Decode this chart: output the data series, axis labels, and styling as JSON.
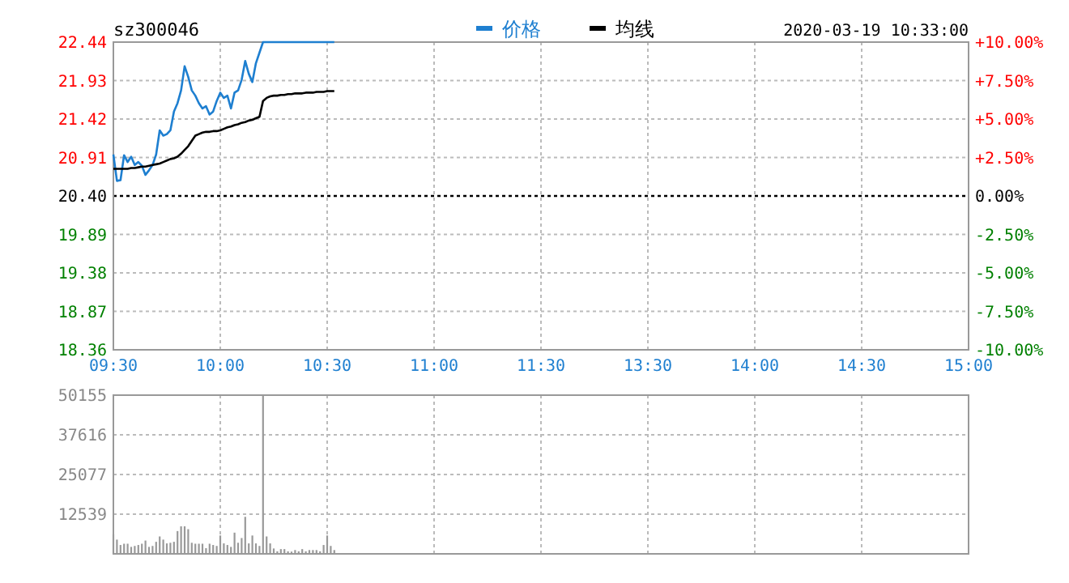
{
  "chart_data": [
    {
      "type": "line",
      "title": "sz300046",
      "subtitle": "2020-03-19 10:33:00",
      "legend": "top",
      "grid": true,
      "categories": [
        "09:30",
        null,
        null,
        null,
        null,
        null,
        null,
        null,
        null,
        null,
        null,
        null,
        null,
        null,
        null,
        null,
        null,
        null,
        null,
        null,
        null,
        null,
        null,
        null,
        null,
        null,
        null,
        null,
        null,
        null,
        "10:00",
        null,
        null,
        null,
        null,
        null,
        null,
        null,
        null,
        null,
        null,
        null,
        null,
        null,
        null,
        null,
        null,
        null,
        null,
        null,
        null,
        null,
        null,
        null,
        null,
        null,
        null,
        null,
        null,
        null,
        "10:30",
        null,
        null,
        null,
        null,
        null,
        null,
        null,
        null,
        null,
        null,
        null,
        null,
        null,
        null,
        null,
        null,
        null,
        null,
        null,
        null,
        null,
        null,
        null,
        null,
        null,
        null,
        null,
        null,
        null,
        "11:00",
        null,
        null,
        null,
        null,
        null,
        null,
        null,
        null,
        null,
        null,
        null,
        null,
        null,
        null,
        null,
        null,
        null,
        null,
        null,
        null,
        null,
        null,
        null,
        null,
        null,
        null,
        null,
        null,
        null,
        "11:30",
        null,
        null,
        null,
        null,
        null,
        null,
        null,
        null,
        null,
        null,
        null,
        null,
        null,
        null,
        null,
        null,
        null,
        null,
        null,
        null,
        null,
        null,
        null,
        null,
        null,
        null,
        null,
        null,
        null,
        "13:30",
        null,
        null,
        null,
        null,
        null,
        null,
        null,
        null,
        null,
        null,
        null,
        null,
        null,
        null,
        null,
        null,
        null,
        null,
        null,
        null,
        null,
        null,
        null,
        null,
        null,
        null,
        null,
        null,
        null,
        "14:00",
        null,
        null,
        null,
        null,
        null,
        null,
        null,
        null,
        null,
        null,
        null,
        null,
        null,
        null,
        null,
        null,
        null,
        null,
        null,
        null,
        null,
        null,
        null,
        null,
        null,
        null,
        null,
        null,
        null,
        "14:30",
        null,
        null,
        null,
        null,
        null,
        null,
        null,
        null,
        null,
        null,
        null,
        null,
        null,
        null,
        null,
        null,
        null,
        null,
        null,
        null,
        null,
        null,
        null,
        null,
        null,
        null,
        null,
        null,
        null,
        "15:00"
      ],
      "ylim": [
        18.36,
        22.44
      ],
      "yticks": [
        22.44,
        21.93,
        21.42,
        20.91,
        {
          "value": 20.4,
          "label": "20.40"
        },
        19.89,
        19.38,
        18.87,
        18.36
      ],
      "y2lim": [
        -10,
        10
      ],
      "y2ticks": [
        {
          "value": 10,
          "label": "+10.00%"
        },
        {
          "value": 7.5,
          "label": "+7.50%"
        },
        {
          "value": 5,
          "label": "+5.00%"
        },
        {
          "value": 2.5,
          "label": "+2.50%"
        },
        {
          "value": 0,
          "label": "0.00%"
        },
        {
          "value": -2.5,
          "label": "-2.50%"
        },
        {
          "value": -5,
          "label": "-5.00%"
        },
        {
          "value": -7.5,
          "label": "-7.50%"
        },
        {
          "value": -10,
          "label": "-10.00%"
        }
      ],
      "ref_lines": [
        {
          "axis": "y",
          "value": 20.4,
          "color": "#000000",
          "line_style": "dotted"
        }
      ],
      "series": [
        {
          "name": "价格",
          "color": "#1e7fd0",
          "values": [
            20.95,
            20.6,
            20.61,
            20.94,
            20.85,
            20.92,
            20.81,
            20.85,
            20.8,
            20.68,
            20.74,
            20.81,
            20.95,
            21.27,
            21.2,
            21.22,
            21.27,
            21.52,
            21.63,
            21.8,
            22.12,
            21.98,
            21.8,
            21.73,
            21.63,
            21.56,
            21.59,
            21.48,
            21.52,
            21.66,
            21.77,
            21.7,
            21.73,
            21.56,
            21.77,
            21.8,
            21.94,
            22.19,
            22.02,
            21.91,
            22.16,
            22.3,
            22.44,
            22.44,
            22.44,
            22.44,
            22.44,
            22.44,
            22.44,
            22.44,
            22.44,
            22.44,
            22.44,
            22.44,
            22.44,
            22.44,
            22.44,
            22.44,
            22.44,
            22.44,
            22.44,
            22.44,
            22.44,
            null,
            null,
            null,
            null,
            null,
            null,
            null,
            null,
            null,
            null,
            null,
            null,
            null,
            null,
            null,
            null,
            null,
            null,
            null,
            null,
            null,
            null,
            null,
            null,
            null,
            null,
            null,
            null,
            null,
            null,
            null,
            null,
            null,
            null,
            null,
            null,
            null,
            null,
            null,
            null,
            null,
            null,
            null,
            null,
            null,
            null,
            null,
            null,
            null,
            null,
            null,
            null,
            null,
            null,
            null,
            null,
            null,
            null,
            null,
            null,
            null,
            null,
            null,
            null,
            null,
            null,
            null,
            null,
            null,
            null,
            null,
            null,
            null,
            null,
            null,
            null,
            null,
            null,
            null,
            null,
            null,
            null,
            null,
            null,
            null,
            null,
            null,
            null,
            null,
            null,
            null,
            null,
            null,
            null,
            null,
            null,
            null,
            null,
            null,
            null,
            null,
            null,
            null,
            null,
            null,
            null,
            null,
            null,
            null,
            null,
            null,
            null,
            null,
            null,
            null,
            null,
            null,
            null,
            null,
            null,
            null,
            null,
            null,
            null,
            null,
            null,
            null,
            null,
            null,
            null,
            null,
            null,
            null,
            null,
            null,
            null,
            null,
            null,
            null,
            null,
            null,
            null,
            null,
            null,
            null,
            null,
            null,
            null,
            null,
            null,
            null,
            null,
            null,
            null,
            null,
            null,
            null,
            null,
            null,
            null,
            null,
            null,
            null,
            null,
            null,
            null,
            null,
            null,
            null,
            null,
            null,
            null,
            null,
            null,
            null,
            null,
            null,
            null
          ]
        },
        {
          "name": "均线",
          "color": "#000000",
          "values": [
            20.76,
            20.76,
            20.76,
            20.76,
            20.76,
            20.77,
            20.77,
            20.78,
            20.79,
            20.79,
            20.8,
            20.81,
            20.82,
            20.83,
            20.85,
            20.87,
            20.89,
            20.9,
            20.92,
            20.96,
            21.01,
            21.06,
            21.13,
            21.2,
            21.22,
            21.24,
            21.25,
            21.25,
            21.26,
            21.26,
            21.27,
            21.29,
            21.31,
            21.32,
            21.34,
            21.35,
            21.37,
            21.38,
            21.4,
            21.41,
            21.43,
            21.45,
            21.66,
            21.7,
            21.72,
            21.73,
            21.73,
            21.74,
            21.74,
            21.75,
            21.75,
            21.76,
            21.76,
            21.76,
            21.77,
            21.77,
            21.77,
            21.78,
            21.78,
            21.78,
            21.79,
            21.79,
            21.79,
            null,
            null,
            null,
            null,
            null,
            null,
            null,
            null,
            null,
            null,
            null,
            null,
            null,
            null,
            null,
            null,
            null,
            null,
            null,
            null,
            null,
            null,
            null,
            null,
            null,
            null,
            null,
            null,
            null,
            null,
            null,
            null,
            null,
            null,
            null,
            null,
            null,
            null,
            null,
            null,
            null,
            null,
            null,
            null,
            null,
            null,
            null,
            null,
            null,
            null,
            null,
            null,
            null,
            null,
            null,
            null,
            null,
            null,
            null,
            null,
            null,
            null,
            null,
            null,
            null,
            null,
            null,
            null,
            null,
            null,
            null,
            null,
            null,
            null,
            null,
            null,
            null,
            null,
            null,
            null,
            null,
            null,
            null,
            null,
            null,
            null,
            null,
            null,
            null,
            null,
            null,
            null,
            null,
            null,
            null,
            null,
            null,
            null,
            null,
            null,
            null,
            null,
            null,
            null,
            null,
            null,
            null,
            null,
            null,
            null,
            null,
            null,
            null,
            null,
            null,
            null,
            null,
            null,
            null,
            null,
            null,
            null,
            null,
            null,
            null,
            null,
            null,
            null,
            null,
            null,
            null,
            null,
            null,
            null,
            null,
            null,
            null,
            null,
            null,
            null,
            null,
            null,
            null,
            null,
            null,
            null,
            null,
            null,
            null,
            null,
            null,
            null,
            null,
            null,
            null,
            null,
            null,
            null,
            null,
            null,
            null,
            null,
            null,
            null,
            null,
            null,
            null,
            null,
            null,
            null,
            null,
            null,
            null,
            null,
            null,
            null,
            null,
            null
          ]
        }
      ]
    },
    {
      "type": "bar",
      "grid": true,
      "tick_labels": "y",
      "categories": [
        null,
        null,
        null,
        null,
        null,
        null,
        null,
        null,
        null,
        null,
        null,
        null,
        null,
        null,
        null,
        null,
        null,
        null,
        null,
        null,
        null,
        null,
        null,
        null,
        null,
        null,
        null,
        null,
        null,
        null,
        null,
        null,
        null,
        null,
        null,
        null,
        null,
        null,
        null,
        null,
        null,
        null,
        null,
        null,
        null,
        null,
        null,
        null,
        null,
        null,
        null,
        null,
        null,
        null,
        null,
        null,
        null,
        null,
        null,
        null,
        null,
        null,
        null,
        null,
        null,
        null,
        null,
        null,
        null,
        null,
        null,
        null,
        null,
        null,
        null,
        null,
        null,
        null,
        null,
        null,
        null,
        null,
        null,
        null,
        null,
        null,
        null,
        null,
        null,
        null,
        null,
        null,
        null,
        null,
        null,
        null,
        null,
        null,
        null,
        null,
        null,
        null,
        null,
        null,
        null,
        null,
        null,
        null,
        null,
        null,
        null,
        null,
        null,
        null,
        null,
        null,
        null,
        null,
        null,
        null,
        null,
        null,
        null,
        null,
        null,
        null,
        null,
        null,
        null,
        null,
        null,
        null,
        null,
        null,
        null,
        null,
        null,
        null,
        null,
        null,
        null,
        null,
        null,
        null,
        null,
        null,
        null,
        null,
        null,
        null,
        null,
        null,
        null,
        null,
        null,
        null,
        null,
        null,
        null,
        null,
        null,
        null,
        null,
        null,
        null,
        null,
        null,
        null,
        null,
        null,
        null,
        null,
        null,
        null,
        null,
        null,
        null,
        null,
        null,
        null,
        null,
        null,
        null,
        null,
        null,
        null,
        null,
        null,
        null,
        null,
        null,
        null,
        null,
        null,
        null,
        null,
        null,
        null,
        null,
        null,
        null,
        null,
        null,
        null,
        null,
        null,
        null,
        null,
        null,
        null,
        null,
        null,
        null,
        null,
        null,
        null,
        null,
        null,
        null,
        null,
        null,
        null,
        null,
        null,
        null,
        null,
        null,
        null,
        null,
        null,
        null,
        null,
        null,
        null,
        null,
        null,
        null,
        null,
        null,
        null,
        null
      ],
      "ylim": [
        0,
        50155
      ],
      "yticks": [
        12539,
        25077,
        37616,
        50155
      ],
      "series": [
        {
          "color": "#999999",
          "values": [
            6200,
            4500,
            2800,
            3200,
            3200,
            2200,
            2500,
            2800,
            3200,
            4200,
            2200,
            2500,
            3800,
            5500,
            4500,
            3300,
            3500,
            3800,
            7200,
            8700,
            8700,
            7800,
            3500,
            3200,
            3200,
            3200,
            1800,
            3200,
            2800,
            2500,
            5800,
            3300,
            2800,
            2200,
            6700,
            3500,
            5000,
            11700,
            3300,
            5800,
            3300,
            2500,
            50155,
            5500,
            3300,
            1700,
            800,
            1500,
            1500,
            800,
            700,
            1200,
            800,
            1500,
            800,
            1200,
            1200,
            1200,
            800,
            2800,
            5800,
            2500,
            1200,
            null,
            null,
            null,
            null,
            null,
            null,
            null,
            null,
            null,
            null,
            null,
            null,
            null,
            null,
            null,
            null,
            null,
            null,
            null,
            null,
            null,
            null,
            null,
            null,
            null,
            null,
            null,
            null,
            null,
            null,
            null,
            null,
            null,
            null,
            null,
            null,
            null,
            null,
            null,
            null,
            null,
            null,
            null,
            null,
            null,
            null,
            null,
            null,
            null,
            null,
            null,
            null,
            null,
            null,
            null,
            null,
            null,
            null,
            null,
            null,
            null,
            null,
            null,
            null,
            null,
            null,
            null,
            null,
            null,
            null,
            null,
            null,
            null,
            null,
            null,
            null,
            null,
            null,
            null,
            null,
            null,
            null,
            null,
            null,
            null,
            null,
            null,
            null,
            null,
            null,
            null,
            null,
            null,
            null,
            null,
            null,
            null,
            null,
            null,
            null,
            null,
            null,
            null,
            null,
            null,
            null,
            null,
            null,
            null,
            null,
            null,
            null,
            null,
            null,
            null,
            null,
            null,
            null,
            null,
            null,
            null,
            null,
            null,
            null,
            null,
            null,
            null,
            null,
            null,
            null,
            null,
            null,
            null,
            null,
            null,
            null,
            null,
            null,
            null,
            null,
            null,
            null,
            null,
            null,
            null,
            null,
            null,
            null,
            null,
            null,
            null,
            null,
            null,
            null,
            null,
            null,
            null,
            null,
            null,
            null,
            null,
            null,
            null,
            null,
            null,
            null,
            null,
            null,
            null,
            null,
            null,
            null,
            null,
            null,
            null,
            null,
            null,
            null
          ]
        }
      ]
    }
  ]
}
